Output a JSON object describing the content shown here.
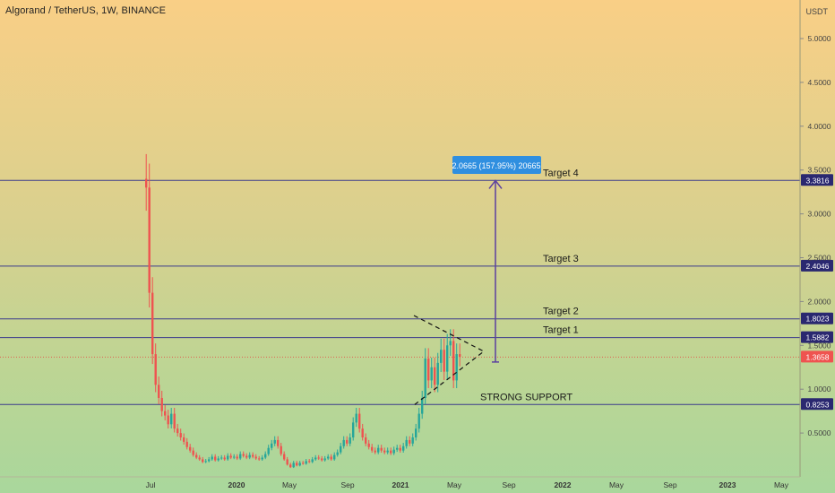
{
  "header": {
    "title": "Algorand / TetherUS, 1W, BINANCE",
    "currency": "USDT"
  },
  "chart_data": {
    "type": "candlestick",
    "symbol": "Algorand / TetherUS",
    "interval": "1W",
    "exchange": "BINANCE",
    "ylim": [
      0,
      5.5
    ],
    "y_ticks": [
      "5.0000",
      "4.5000",
      "4.0000",
      "3.5000",
      "3.0000",
      "2.5000",
      "2.0000",
      "1.5000",
      "1.0000",
      "0.5000"
    ],
    "x_ticks": [
      "Jul",
      "2020",
      "May",
      "Sep",
      "2021",
      "May",
      "Sep",
      "2022",
      "May",
      "Sep",
      "2023",
      "May"
    ],
    "current_price": {
      "label": "1.3658",
      "value": 1.3658
    },
    "colors": {
      "up": "#26a69a",
      "down": "#ef5350",
      "level": "#3b3a8c",
      "measure": "#5b3fa0",
      "tag": "#2a2870"
    },
    "levels": [
      {
        "value": 3.3816,
        "label": "3.3816",
        "target": "Target 4"
      },
      {
        "value": 2.4046,
        "label": "2.4046",
        "target": "Target 3"
      },
      {
        "value": 1.8023,
        "label": "1.8023",
        "target": "Target 2"
      },
      {
        "value": 1.5882,
        "label": "1.5882",
        "target": "Target 1"
      },
      {
        "value": 0.8253,
        "label": "0.8253",
        "target": "STRONG SUPPORT"
      }
    ],
    "measure": {
      "from": 1.31,
      "to": 3.38,
      "label": "2.0665 (157.95%) 20665"
    },
    "closes": [
      3.3,
      2.1,
      1.4,
      1.05,
      0.9,
      0.75,
      0.7,
      0.6,
      0.72,
      0.55,
      0.5,
      0.45,
      0.4,
      0.34,
      0.3,
      0.25,
      0.22,
      0.2,
      0.17,
      0.18,
      0.2,
      0.23,
      0.19,
      0.21,
      0.22,
      0.2,
      0.24,
      0.22,
      0.23,
      0.21,
      0.26,
      0.24,
      0.22,
      0.25,
      0.23,
      0.21,
      0.2,
      0.22,
      0.26,
      0.33,
      0.38,
      0.42,
      0.35,
      0.26,
      0.2,
      0.14,
      0.11,
      0.16,
      0.13,
      0.16,
      0.15,
      0.18,
      0.17,
      0.2,
      0.22,
      0.21,
      0.19,
      0.21,
      0.23,
      0.2,
      0.25,
      0.28,
      0.35,
      0.42,
      0.38,
      0.45,
      0.62,
      0.72,
      0.55,
      0.45,
      0.38,
      0.34,
      0.3,
      0.28,
      0.33,
      0.3,
      0.28,
      0.3,
      0.27,
      0.31,
      0.33,
      0.3,
      0.35,
      0.42,
      0.38,
      0.45,
      0.55,
      0.72,
      0.9,
      1.35,
      1.1,
      1.25,
      1.05,
      1.3,
      1.45,
      1.2,
      1.5,
      1.55,
      1.1,
      1.4,
      1.37
    ]
  }
}
